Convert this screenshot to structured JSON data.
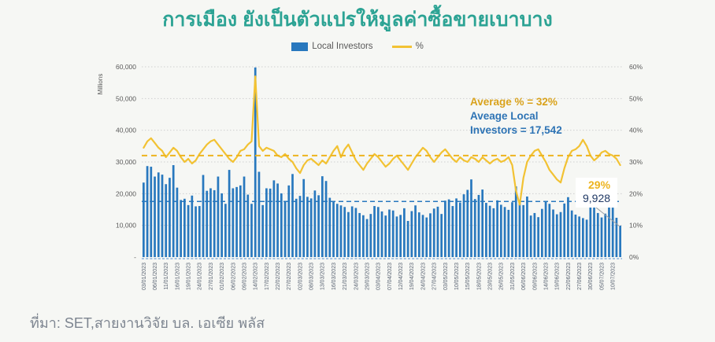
{
  "title": "การเมือง ยังเป็นตัวแปรให้มูลค่าซื้อขายเบาบาง",
  "source": "ที่มา: SET,สายงานวิจัย บล. เอเซีย พลัส",
  "legend": {
    "bar_label": "Local Investors",
    "pct_label": "%"
  },
  "annotations": {
    "avg_pct": "Average % = 32%",
    "avg_local_line1": "Aveage Local",
    "avg_local_line2": "Investors = 17,542",
    "last_pct": "29%",
    "last_bar": "9,928"
  },
  "axes": {
    "left_title": "Millions",
    "left_ticks": [
      "60,000",
      "50,000",
      "40,000",
      "30,000",
      "20,000",
      "10,000",
      "-"
    ],
    "right_ticks": [
      "60%",
      "50%",
      "40%",
      "30%",
      "20%",
      "10%",
      "0%"
    ]
  },
  "colors": {
    "title": "#2ca394",
    "bar": "#2878be",
    "line": "#f2c233",
    "avg_pct_dash": "#edb41f",
    "avg_bar_dash": "#2878be",
    "gold_text": "#d9a21b",
    "blue_text": "#2e74b5",
    "navy_text": "#1f3864",
    "last_pct_text": "#edb41f",
    "background": "#f6f7f4",
    "grid": "#d0d0d0",
    "axis_text": "#595959",
    "date_text": "#5a6473",
    "baseline": "#6fa3d8",
    "arrow": "#9aa0a6",
    "annotation_box_bg": "#ffffff"
  },
  "chart_data": {
    "type": "bar",
    "subtype": "bar+line-combo",
    "title": "การเมือง ยังเป็นตัวแปรให้มูลค่าซื้อขายเบาบาง",
    "grid": true,
    "legend_position": "top",
    "categories": [
      "03/01/2023",
      "06/01/2023",
      "11/01/2023",
      "16/01/2023",
      "19/01/2023",
      "24/01/2023",
      "27/01/2023",
      "01/02/2023",
      "06/02/2023",
      "09/02/2023",
      "14/02/2023",
      "17/02/2023",
      "22/02/2023",
      "27/02/2023",
      "02/03/2023",
      "08/03/2023",
      "13/03/2023",
      "16/03/2023",
      "21/03/2023",
      "24/03/2023",
      "29/03/2023",
      "03/04/2023",
      "07/04/2023",
      "12/04/2023",
      "19/04/2023",
      "24/04/2023",
      "27/04/2023",
      "03/05/2023",
      "10/05/2023",
      "15/05/2023",
      "18/05/2023",
      "23/05/2023",
      "26/05/2023",
      "31/05/2023",
      "06/06/2023",
      "09/06/2023",
      "14/06/2023",
      "19/06/2023",
      "22/06/2023",
      "27/06/2023",
      "30/06/2023",
      "05/07/2023",
      "10/07/2023"
    ],
    "label_every": 3,
    "left_axis": {
      "label": "Millions",
      "min": 0,
      "max": 60000,
      "step": 10000
    },
    "right_axis": {
      "min": 0,
      "max": 60,
      "step": 10,
      "unit": "%"
    },
    "avg_pct_value": 32,
    "avg_investors_value": 17542,
    "last_pct_value": 29,
    "last_bar_value": 9928,
    "series": [
      {
        "name": "Local Investors",
        "type": "bar",
        "axis": "left",
        "values": [
          23500,
          28700,
          28500,
          25400,
          26700,
          26000,
          23000,
          25000,
          29000,
          21900,
          18000,
          18400,
          16400,
          19400,
          16000,
          16100,
          25900,
          20900,
          21700,
          21100,
          25400,
          20100,
          16800,
          27500,
          21700,
          22100,
          22600,
          25400,
          19700,
          16800,
          59800,
          26900,
          16400,
          21700,
          21600,
          24200,
          23200,
          20100,
          17600,
          22600,
          26200,
          18400,
          19300,
          24600,
          19000,
          18500,
          21000,
          19500,
          25500,
          24000,
          18700,
          17500,
          16800,
          16300,
          15800,
          14200,
          16000,
          15500,
          13900,
          13200,
          12000,
          13600,
          16100,
          15800,
          14400,
          13100,
          15000,
          14700,
          12800,
          13300,
          15400,
          11400,
          14500,
          16300,
          14100,
          13300,
          12500,
          13800,
          15300,
          15900,
          13600,
          17800,
          18200,
          16100,
          18500,
          17200,
          19800,
          21200,
          24500,
          18300,
          19600,
          21300,
          17100,
          16200,
          15400,
          17900,
          16500,
          15800,
          14900,
          17300,
          22300,
          17900,
          16400,
          19100,
          13100,
          13900,
          12600,
          15200,
          17600,
          16800,
          15000,
          13500,
          14200,
          16900,
          18900,
          14700,
          13400,
          12800,
          12300,
          11800,
          16900,
          17600,
          13900,
          12500,
          13700,
          16300,
          15600,
          12400,
          9928
        ]
      },
      {
        "name": "%",
        "type": "line",
        "axis": "right",
        "values": [
          34.5,
          36.5,
          37.5,
          36.0,
          34.5,
          33.5,
          31.5,
          33.0,
          34.5,
          33.5,
          31.5,
          30.0,
          31.0,
          29.5,
          30.5,
          32.5,
          34.0,
          35.5,
          36.5,
          37.0,
          35.5,
          34.0,
          32.5,
          31.0,
          30.0,
          31.5,
          33.5,
          34.0,
          35.5,
          36.5,
          57.0,
          35.0,
          33.5,
          34.5,
          34.0,
          33.5,
          32.0,
          31.5,
          32.5,
          31.0,
          30.0,
          28.0,
          26.5,
          29.0,
          30.5,
          31.0,
          30.0,
          29.0,
          30.5,
          29.5,
          31.5,
          33.5,
          35.0,
          31.5,
          34.0,
          35.5,
          33.0,
          30.5,
          29.0,
          27.5,
          29.5,
          31.0,
          32.5,
          31.5,
          30.0,
          28.5,
          29.5,
          31.0,
          32.0,
          30.5,
          29.0,
          27.5,
          29.5,
          31.5,
          33.0,
          34.5,
          33.5,
          31.5,
          30.0,
          31.5,
          33.0,
          34.0,
          32.5,
          31.0,
          30.0,
          31.5,
          30.5,
          30.0,
          31.5,
          31.0,
          30.0,
          31.5,
          30.5,
          29.5,
          30.5,
          31.0,
          30.0,
          30.5,
          31.5,
          29.0,
          21.0,
          16.5,
          25.0,
          30.0,
          32.0,
          33.5,
          34.0,
          32.0,
          30.0,
          27.5,
          26.0,
          24.5,
          23.5,
          28.0,
          31.5,
          33.5,
          34.0,
          35.0,
          37.0,
          35.0,
          32.0,
          30.5,
          31.5,
          33.0,
          33.5,
          32.5,
          32.0,
          31.0,
          29.0
        ]
      }
    ]
  }
}
